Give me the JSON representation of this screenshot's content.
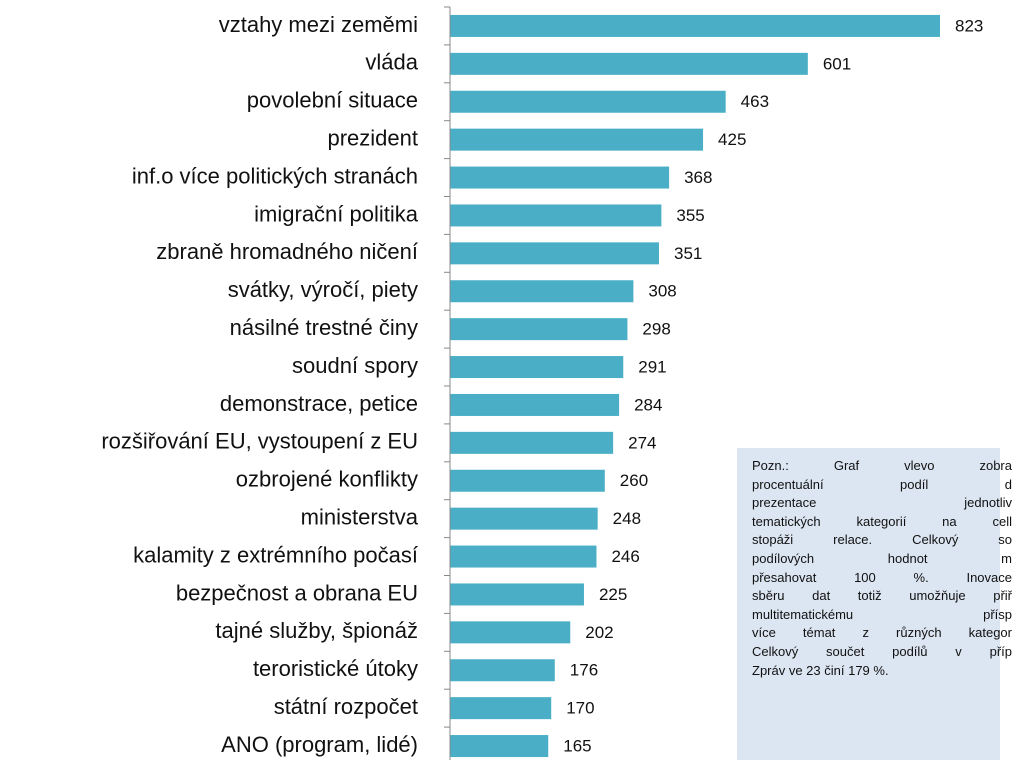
{
  "chart_data": {
    "type": "bar",
    "orientation": "horizontal",
    "color": "#4aafc6",
    "categories": [
      "vztahy mezi zeměmi",
      "vláda",
      "povolební situace",
      "prezident",
      "inf.o více politických stranách",
      "imigrační politika",
      "zbraně hromadného ničení",
      "svátky, výročí, piety",
      "násilné trestné činy",
      "soudní spory",
      "demonstrace, petice",
      "rozšiřování EU, vystoupení z EU",
      "ozbrojené konflikty",
      "ministerstva",
      "kalamity z extrémního počasí",
      "bezpečnost a obrana EU",
      "tajné služby, špionáž",
      "teroristické útoky",
      "státní rozpočet",
      "ANO (program, lidé)"
    ],
    "values": [
      823,
      601,
      463,
      425,
      368,
      355,
      351,
      308,
      298,
      291,
      284,
      274,
      260,
      248,
      246,
      225,
      202,
      176,
      170,
      165
    ],
    "xlim": [
      0,
      900
    ]
  },
  "note": {
    "lines": [
      "Pozn.: Graf vlevo zobra",
      "procentuální podíl d",
      "prezentace jednotliv",
      "tematických kategorií na cell",
      "stopáži relace. Celkový so",
      "podílových hodnot m",
      "přesahovat 100 %. Inovace",
      "sběru dat totiž umožňuje přiř",
      "multitematickému přísp",
      "více témat z různých kategor",
      "Celkový součet podílů v příp",
      "Zpráv ve 23 činí 179 %."
    ]
  }
}
